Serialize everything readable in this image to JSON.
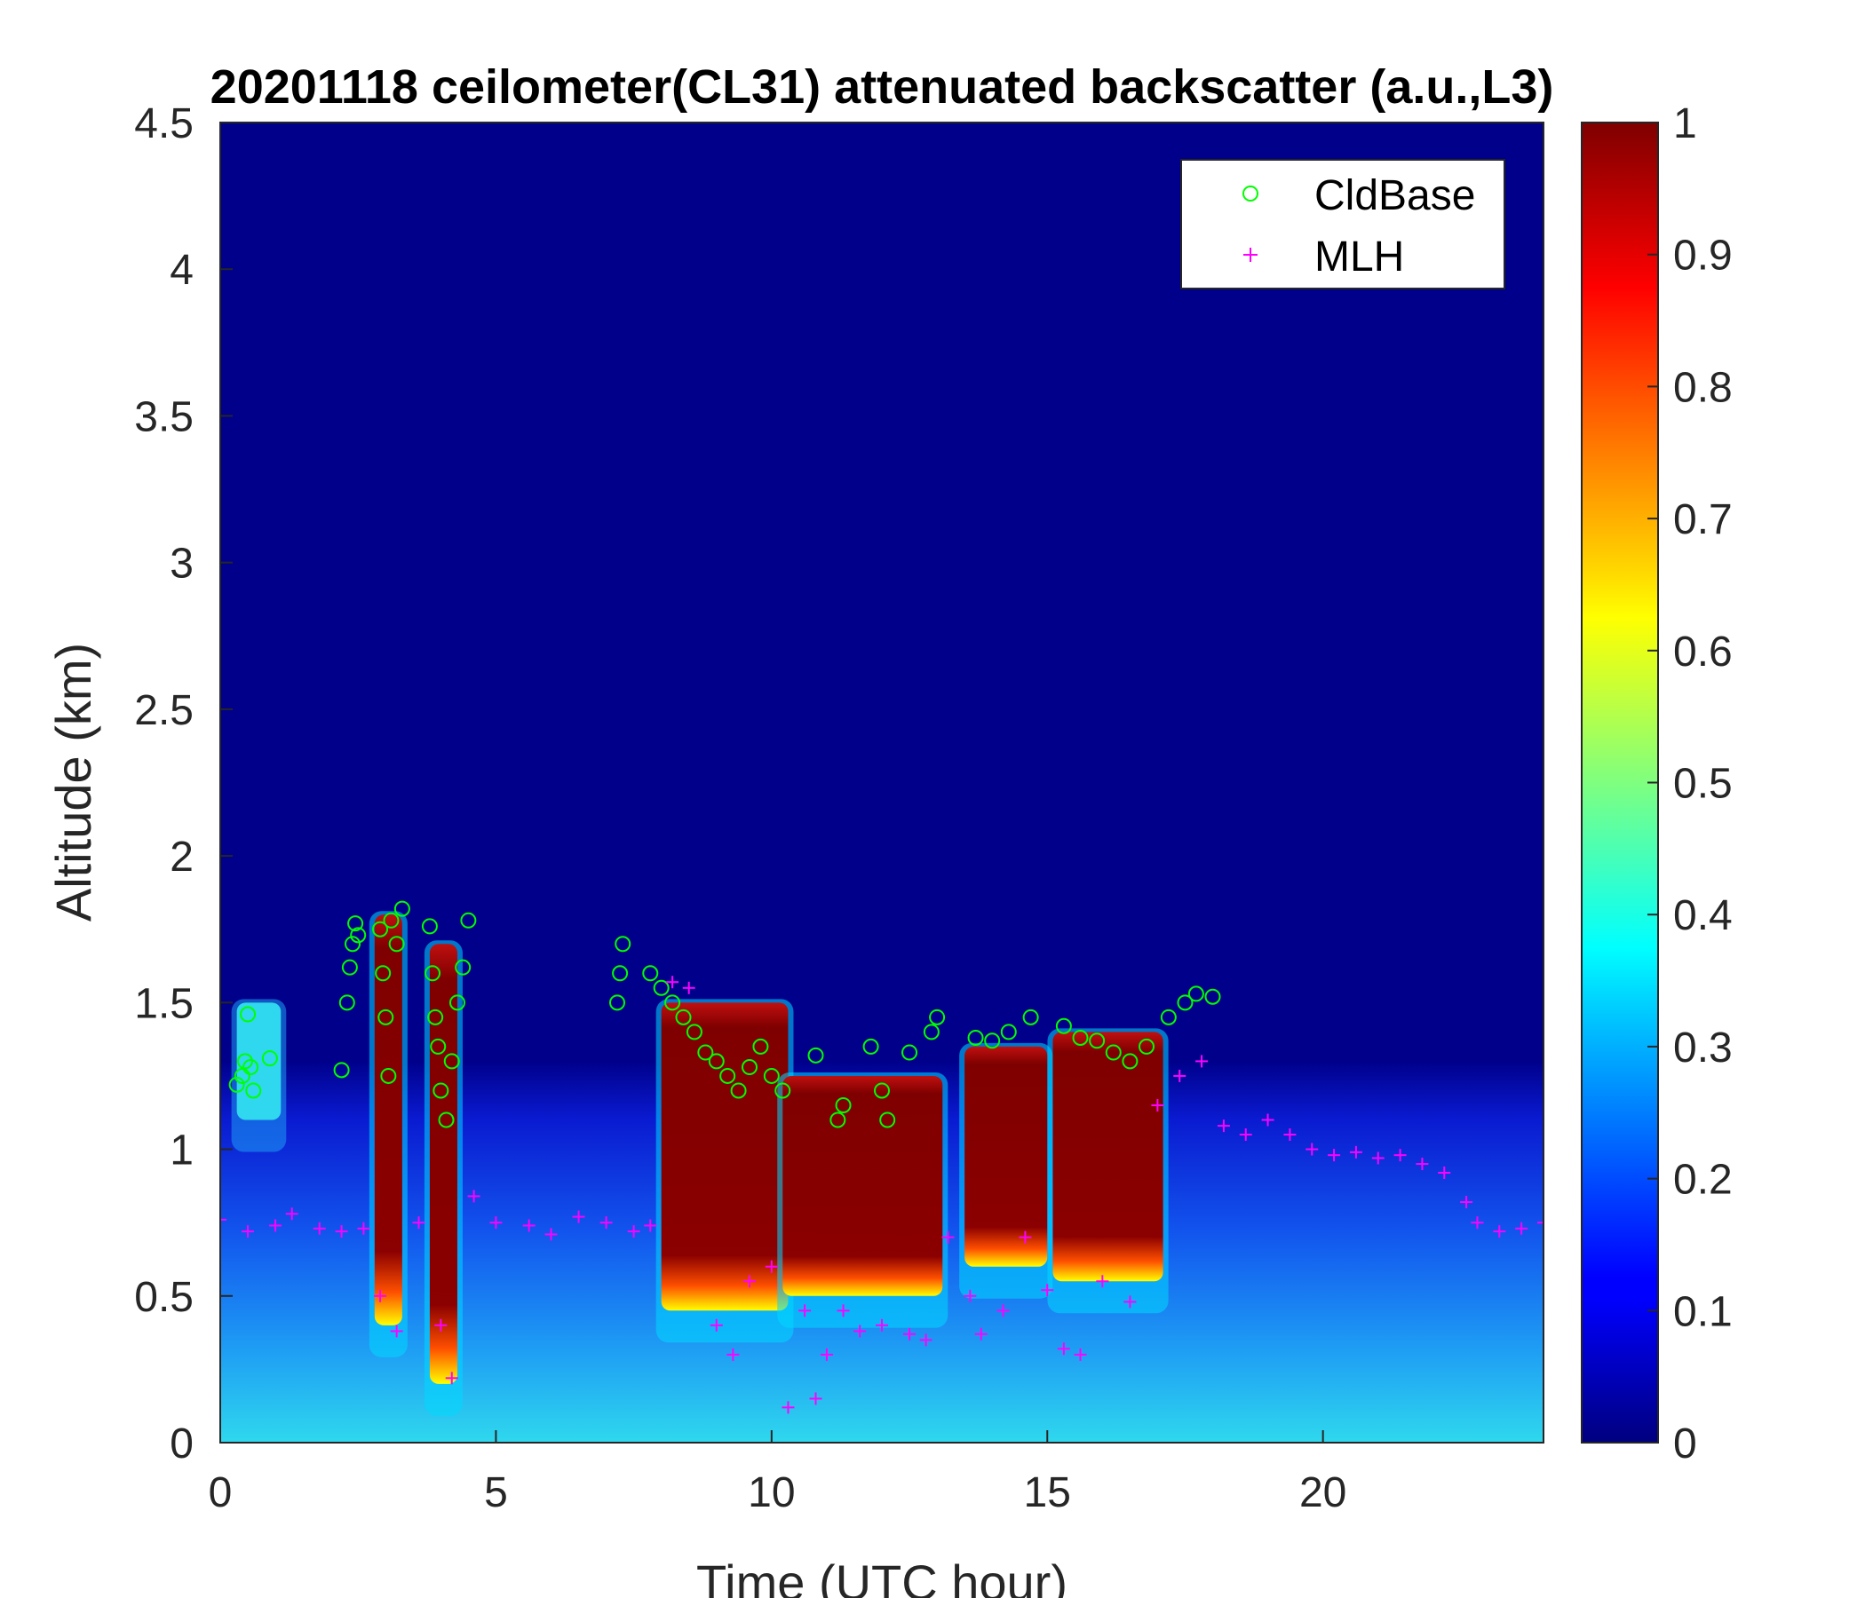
{
  "chart_data": {
    "type": "heatmap",
    "title": "20201118 ceilometer(CL31) attenuated backscatter (a.u.,L3)",
    "xlabel": "Time (UTC hour)",
    "ylabel": "Altitude (km)",
    "xlim": [
      0,
      24
    ],
    "ylim": [
      0,
      4.5
    ],
    "xticks": [
      "0",
      "5",
      "10",
      "15",
      "20"
    ],
    "yticks": [
      "0",
      "0.5",
      "1",
      "1.5",
      "2",
      "2.5",
      "3",
      "3.5",
      "4",
      "4.5"
    ],
    "colorbar": {
      "colormap": "jet",
      "range": [
        0,
        1
      ],
      "ticks": [
        "0",
        "0.1",
        "0.2",
        "0.3",
        "0.4",
        "0.5",
        "0.6",
        "0.7",
        "0.8",
        "0.9",
        "1"
      ]
    },
    "legend": {
      "placement": "top-right",
      "entries": [
        {
          "label": "CldBase",
          "marker": "circle",
          "color": "#00ff00"
        },
        {
          "label": "MLH",
          "marker": "plus",
          "color": "#ff00ff"
        }
      ]
    },
    "backscatter_regions": [
      {
        "t0": 8.0,
        "t1": 10.3,
        "base": 0.45,
        "top": 1.5,
        "value": 1.0
      },
      {
        "t0": 10.2,
        "t1": 13.1,
        "base": 0.5,
        "top": 1.25,
        "value": 1.0
      },
      {
        "t0": 13.5,
        "t1": 15.0,
        "base": 0.6,
        "top": 1.35,
        "value": 1.0
      },
      {
        "t0": 15.1,
        "t1": 17.1,
        "base": 0.55,
        "top": 1.4,
        "value": 1.0
      },
      {
        "t0": 2.8,
        "t1": 3.3,
        "base": 0.4,
        "top": 1.8,
        "value": 1.0
      },
      {
        "t0": 3.8,
        "t1": 4.3,
        "base": 0.2,
        "top": 1.7,
        "value": 1.0
      },
      {
        "t0": 0.3,
        "t1": 1.1,
        "base": 1.1,
        "top": 1.5,
        "value": 0.35
      }
    ],
    "series": [
      {
        "name": "CldBase",
        "points": [
          [
            0.3,
            1.22
          ],
          [
            0.4,
            1.25
          ],
          [
            0.45,
            1.3
          ],
          [
            0.5,
            1.46
          ],
          [
            0.55,
            1.28
          ],
          [
            0.6,
            1.2
          ],
          [
            0.9,
            1.31
          ],
          [
            2.2,
            1.27
          ],
          [
            2.3,
            1.5
          ],
          [
            2.35,
            1.62
          ],
          [
            2.4,
            1.7
          ],
          [
            2.45,
            1.77
          ],
          [
            2.5,
            1.73
          ],
          [
            2.9,
            1.75
          ],
          [
            2.95,
            1.6
          ],
          [
            3.0,
            1.45
          ],
          [
            3.05,
            1.25
          ],
          [
            3.1,
            1.78
          ],
          [
            3.2,
            1.7
          ],
          [
            3.3,
            1.82
          ],
          [
            3.8,
            1.76
          ],
          [
            3.85,
            1.6
          ],
          [
            3.9,
            1.45
          ],
          [
            3.95,
            1.35
          ],
          [
            4.0,
            1.2
          ],
          [
            4.1,
            1.1
          ],
          [
            4.2,
            1.3
          ],
          [
            4.3,
            1.5
          ],
          [
            4.4,
            1.62
          ],
          [
            4.5,
            1.78
          ],
          [
            7.2,
            1.5
          ],
          [
            7.25,
            1.6
          ],
          [
            7.3,
            1.7
          ],
          [
            7.8,
            1.6
          ],
          [
            8.0,
            1.55
          ],
          [
            8.2,
            1.5
          ],
          [
            8.4,
            1.45
          ],
          [
            8.6,
            1.4
          ],
          [
            8.8,
            1.33
          ],
          [
            9.0,
            1.3
          ],
          [
            9.2,
            1.25
          ],
          [
            9.4,
            1.2
          ],
          [
            9.6,
            1.28
          ],
          [
            9.8,
            1.35
          ],
          [
            10.0,
            1.25
          ],
          [
            10.2,
            1.2
          ],
          [
            10.8,
            1.32
          ],
          [
            11.2,
            1.1
          ],
          [
            11.3,
            1.15
          ],
          [
            11.8,
            1.35
          ],
          [
            12.0,
            1.2
          ],
          [
            12.1,
            1.1
          ],
          [
            12.5,
            1.33
          ],
          [
            12.9,
            1.4
          ],
          [
            13.0,
            1.45
          ],
          [
            13.7,
            1.38
          ],
          [
            14.0,
            1.37
          ],
          [
            14.3,
            1.4
          ],
          [
            14.7,
            1.45
          ],
          [
            15.3,
            1.42
          ],
          [
            15.6,
            1.38
          ],
          [
            15.9,
            1.37
          ],
          [
            16.2,
            1.33
          ],
          [
            16.5,
            1.3
          ],
          [
            16.8,
            1.35
          ],
          [
            17.2,
            1.45
          ],
          [
            17.5,
            1.5
          ],
          [
            17.7,
            1.53
          ],
          [
            18.0,
            1.52
          ]
        ]
      },
      {
        "name": "MLH",
        "points": [
          [
            0.0,
            0.76
          ],
          [
            0.5,
            0.72
          ],
          [
            1.0,
            0.74
          ],
          [
            1.3,
            0.78
          ],
          [
            1.8,
            0.73
          ],
          [
            2.2,
            0.72
          ],
          [
            2.6,
            0.73
          ],
          [
            2.9,
            0.5
          ],
          [
            3.2,
            0.38
          ],
          [
            3.6,
            0.75
          ],
          [
            4.0,
            0.4
          ],
          [
            4.2,
            0.22
          ],
          [
            4.6,
            0.84
          ],
          [
            5.0,
            0.75
          ],
          [
            5.6,
            0.74
          ],
          [
            6.0,
            0.71
          ],
          [
            6.5,
            0.77
          ],
          [
            7.0,
            0.75
          ],
          [
            7.5,
            0.72
          ],
          [
            7.8,
            0.74
          ],
          [
            8.2,
            1.57
          ],
          [
            8.5,
            1.55
          ],
          [
            9.0,
            0.4
          ],
          [
            9.3,
            0.3
          ],
          [
            9.6,
            0.55
          ],
          [
            10.0,
            0.6
          ],
          [
            10.3,
            0.12
          ],
          [
            10.6,
            0.45
          ],
          [
            10.8,
            0.15
          ],
          [
            11.0,
            0.3
          ],
          [
            11.3,
            0.45
          ],
          [
            11.6,
            0.38
          ],
          [
            12.0,
            0.4
          ],
          [
            12.5,
            0.37
          ],
          [
            12.8,
            0.35
          ],
          [
            13.2,
            0.7
          ],
          [
            13.6,
            0.5
          ],
          [
            13.8,
            0.37
          ],
          [
            14.2,
            0.45
          ],
          [
            14.6,
            0.7
          ],
          [
            15.0,
            0.52
          ],
          [
            15.3,
            0.32
          ],
          [
            15.6,
            0.3
          ],
          [
            16.0,
            0.55
          ],
          [
            16.5,
            0.48
          ],
          [
            17.0,
            1.15
          ],
          [
            17.4,
            1.25
          ],
          [
            17.8,
            1.3
          ],
          [
            18.2,
            1.08
          ],
          [
            18.6,
            1.05
          ],
          [
            19.0,
            1.1
          ],
          [
            19.4,
            1.05
          ],
          [
            19.8,
            1.0
          ],
          [
            20.2,
            0.98
          ],
          [
            20.6,
            0.99
          ],
          [
            21.0,
            0.97
          ],
          [
            21.4,
            0.98
          ],
          [
            21.8,
            0.95
          ],
          [
            22.2,
            0.92
          ],
          [
            22.6,
            0.82
          ],
          [
            22.8,
            0.75
          ],
          [
            23.2,
            0.72
          ],
          [
            23.6,
            0.73
          ],
          [
            24.0,
            0.75
          ]
        ]
      }
    ]
  }
}
